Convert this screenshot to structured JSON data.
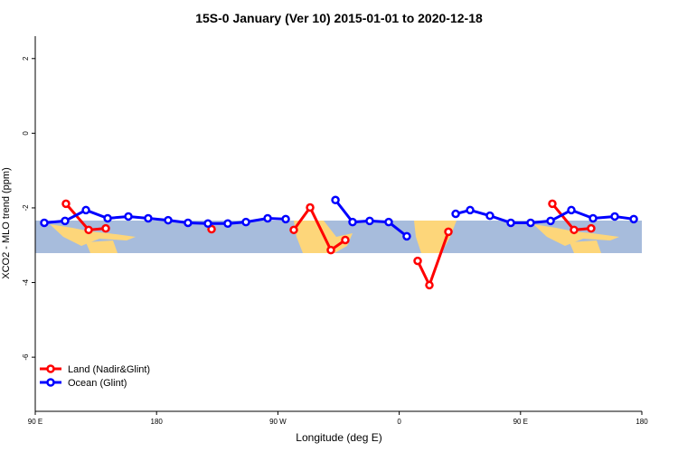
{
  "chart_data": {
    "type": "line",
    "title": "15S-0 January (Ver 10)   2015-01-01 to 2020-12-18",
    "xlabel": "Longitude (deg E)",
    "ylabel": "XCO2 - MLO trend (ppm)",
    "xlim": [
      90,
      540
    ],
    "ylim": [
      -7.45,
      2.6
    ],
    "xticks": [
      {
        "value": 90,
        "label": "90 E"
      },
      180,
      {
        "value": 270,
        "label": "90 W"
      },
      {
        "value": 360,
        "label": "0"
      },
      {
        "value": 450,
        "label": "90 E"
      },
      {
        "value": 540,
        "label": "180"
      }
    ],
    "yticks": [
      -6,
      -4,
      -2,
      0,
      2
    ],
    "legend": "bottom-left",
    "series": [
      {
        "name": "Land (Nadir&Glint)",
        "color": "#ff0000",
        "x": [
          112.8,
          129.6,
          142.3,
          null,
          220.8,
          null,
          281.8,
          293.9,
          309.3,
          320.0,
          null,
          373.7,
          382.4,
          396.5,
          null,
          473.6,
          489.7,
          502.4
        ],
        "values": [
          -1.89,
          -2.59,
          -2.55,
          null,
          -2.57,
          null,
          -2.59,
          -1.99,
          -3.13,
          -2.86,
          null,
          -3.42,
          -4.07,
          -2.64,
          null,
          -1.89,
          -2.59,
          -2.55
        ]
      },
      {
        "name": "Ocean (Glint)",
        "color": "#0000ff",
        "x": [
          96.7,
          112.1,
          127.6,
          143.7,
          159.1,
          173.8,
          188.6,
          203.3,
          218.1,
          232.8,
          246.3,
          262.4,
          275.8,
          null,
          312.7,
          325.4,
          338.1,
          352.2,
          365.6,
          null,
          401.9,
          412.6,
          427.3,
          442.8,
          457.5,
          472.3,
          487.7,
          503.8,
          519.9,
          534.0
        ],
        "values": [
          -2.4,
          -2.35,
          -2.06,
          -2.28,
          -2.23,
          -2.28,
          -2.33,
          -2.4,
          -2.42,
          -2.42,
          -2.38,
          -2.28,
          -2.3,
          null,
          -1.79,
          -2.38,
          -2.35,
          -2.38,
          -2.76,
          null,
          -2.16,
          -2.06,
          -2.21,
          -2.4,
          -2.4,
          -2.35,
          -2.06,
          -2.28,
          -2.23,
          -2.3
        ]
      }
    ]
  }
}
